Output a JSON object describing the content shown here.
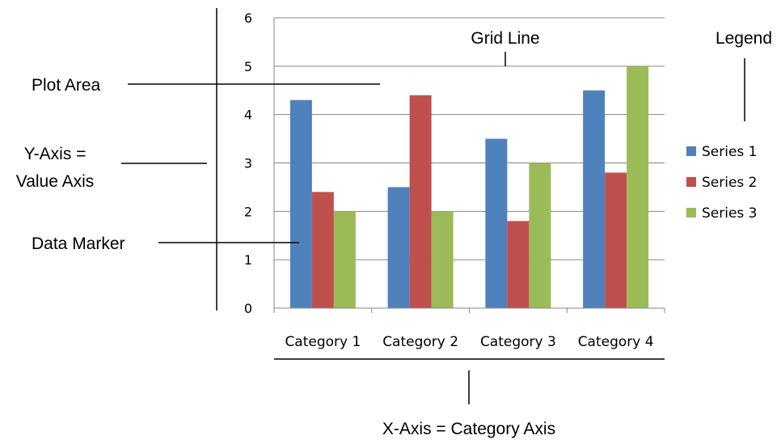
{
  "chart_data": {
    "type": "bar",
    "categories": [
      "Category 1",
      "Category 2",
      "Category 3",
      "Category 4"
    ],
    "series": [
      {
        "name": "Series 1",
        "values": [
          4.3,
          2.5,
          3.5,
          4.5
        ],
        "color": "#4f81bd"
      },
      {
        "name": "Series 2",
        "values": [
          2.4,
          4.4,
          1.8,
          2.8
        ],
        "color": "#c0504d"
      },
      {
        "name": "Series 3",
        "values": [
          2.0,
          2.0,
          3.0,
          5.0
        ],
        "color": "#9bbb59"
      }
    ],
    "ylim": [
      0,
      6
    ],
    "yticks": [
      "0",
      "1",
      "2",
      "3",
      "4",
      "5",
      "6"
    ],
    "grid": true,
    "legend_position": "right"
  },
  "annotations": {
    "grid_line": "Grid Line",
    "legend": "Legend",
    "plot_area": "Plot Area",
    "y_axis_line1": "Y-Axis =",
    "y_axis_line2": "Value Axis",
    "data_marker": "Data Marker",
    "x_axis": "X-Axis = Category Axis"
  },
  "colors": {
    "gridline": "#868686",
    "annotation_line": "#000000"
  }
}
